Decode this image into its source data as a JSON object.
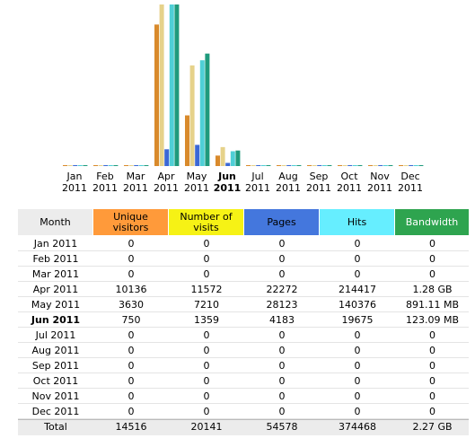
{
  "chart_data": {
    "type": "bar",
    "categories": [
      "Jan 2011",
      "Feb 2011",
      "Mar 2011",
      "Apr 2011",
      "May 2011",
      "Jun 2011",
      "Jul 2011",
      "Aug 2011",
      "Sep 2011",
      "Oct 2011",
      "Nov 2011",
      "Dec 2011"
    ],
    "current": 5,
    "series": [
      {
        "name": "Unique visitors",
        "color": "#d98a2c",
        "header_color": "#ff9a3a",
        "group": 1,
        "values": [
          0,
          0,
          0,
          10136,
          3630,
          750,
          0,
          0,
          0,
          0,
          0,
          0
        ],
        "total": 14516
      },
      {
        "name": "Number of visits",
        "color": "#e6d28a",
        "header_color": "#f6f215",
        "group": 1,
        "values": [
          0,
          0,
          0,
          11572,
          7210,
          1359,
          0,
          0,
          0,
          0,
          0,
          0
        ],
        "total": 20141
      },
      {
        "name": "Pages",
        "color": "#3b68d6",
        "header_color": "#4477dd",
        "group": 2,
        "values": [
          0,
          0,
          0,
          22272,
          28123,
          4183,
          0,
          0,
          0,
          0,
          0,
          0
        ],
        "total": 54578
      },
      {
        "name": "Hits",
        "color": "#4fcfd6",
        "header_color": "#66eeff",
        "group": 2,
        "values": [
          0,
          0,
          0,
          214417,
          140376,
          19675,
          0,
          0,
          0,
          0,
          0,
          0
        ],
        "total": 374468
      },
      {
        "name": "Bandwidth",
        "color": "#1f9a7c",
        "header_color": "#2ea44f",
        "group": 3,
        "values": [
          0,
          0,
          0,
          1.28,
          0.89111,
          0.12309,
          0,
          0,
          0,
          0,
          0,
          0
        ],
        "value_labels": [
          "0",
          "0",
          "0",
          "1.28 GB",
          "891.11 MB",
          "123.09 MB",
          "0",
          "0",
          "0",
          "0",
          "0",
          "0"
        ],
        "total": 2.27,
        "total_label": "2.27 GB"
      }
    ]
  },
  "month_header": "Month",
  "total_text": "Total"
}
